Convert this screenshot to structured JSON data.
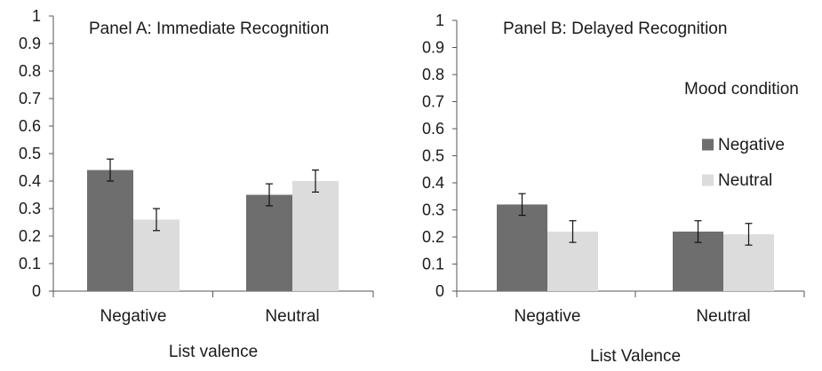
{
  "chart_data": [
    {
      "type": "bar",
      "title": "Panel A: Immediate Recognition",
      "xlabel": "List valence",
      "ylabel": "",
      "ylim": [
        0,
        1
      ],
      "yticks": [
        "0",
        "0.1",
        "0.2",
        "0.3",
        "0.4",
        "0.5",
        "0.6",
        "0.7",
        "0.8",
        "0.9",
        "1"
      ],
      "categories": [
        "Negative",
        "Neutral"
      ],
      "series": [
        {
          "name": "Negative",
          "color": "#6e6e6e",
          "values": [
            0.44,
            0.35
          ],
          "errors": [
            0.04,
            0.04
          ]
        },
        {
          "name": "Neutral",
          "color": "#dcdcdc",
          "values": [
            0.26,
            0.4
          ],
          "errors": [
            0.04,
            0.04
          ]
        }
      ],
      "grid": false,
      "legend": "none"
    },
    {
      "type": "bar",
      "title": "Panel B: Delayed Recognition",
      "xlabel": "List Valence",
      "ylabel": "",
      "ylim": [
        0,
        1
      ],
      "yticks": [
        "0",
        "0.1",
        "0.2",
        "0.3",
        "0.4",
        "0.5",
        "0.6",
        "0.7",
        "0.8",
        "0.9",
        "1"
      ],
      "categories": [
        "Negative",
        "Neutral"
      ],
      "series": [
        {
          "name": "Negative",
          "color": "#6e6e6e",
          "values": [
            0.32,
            0.22
          ],
          "errors": [
            0.04,
            0.04
          ]
        },
        {
          "name": "Neutral",
          "color": "#dcdcdc",
          "values": [
            0.22,
            0.21
          ],
          "errors": [
            0.04,
            0.04
          ]
        }
      ],
      "grid": false,
      "legend": "right",
      "legend_title": "Mood condition"
    }
  ]
}
